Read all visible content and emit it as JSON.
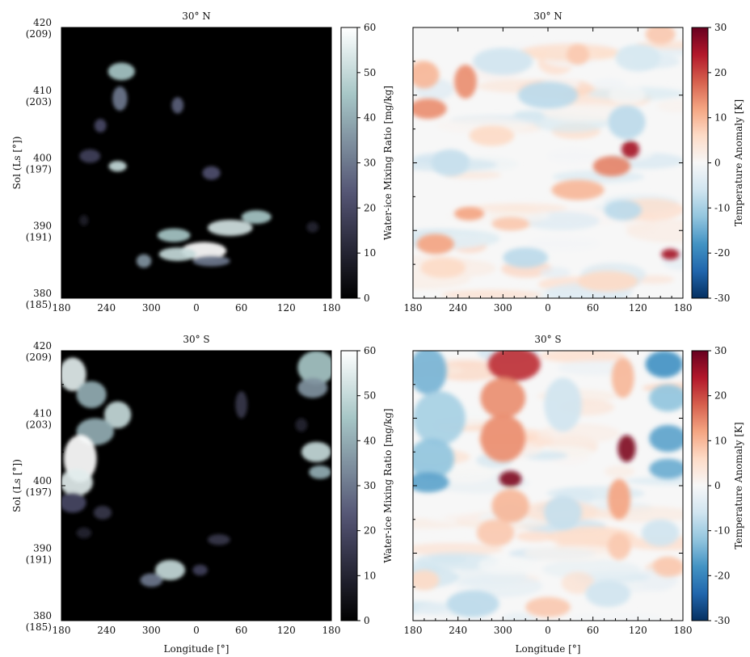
{
  "chart_data": [
    {
      "type": "heatmap",
      "title": "30° N",
      "variable": "water_ice_mixing_ratio",
      "xlabel": "",
      "ylabel": "Sol (Ls [°])",
      "x_ticks": [
        "180",
        "240",
        "300",
        "0",
        "60",
        "120",
        "180"
      ],
      "y_ticks": [
        {
          "sol": "380",
          "ls": "(185)"
        },
        {
          "sol": "390",
          "ls": "(191)"
        },
        {
          "sol": "400",
          "ls": "(197)"
        },
        {
          "sol": "410",
          "ls": "(203)"
        },
        {
          "sol": "420",
          "ls": "(209)"
        }
      ],
      "xlim": [
        180,
        540
      ],
      "ylim": [
        380,
        420
      ],
      "colorbar": {
        "label": "Water-ice Mixing Ratio [mg/kg]",
        "ticks": [
          "0",
          "10",
          "20",
          "30",
          "40",
          "50",
          "60"
        ],
        "range": [
          0,
          60
        ],
        "colormap": "bone"
      },
      "features": [
        {
          "lon": 260,
          "sol": 413.5,
          "value": 45,
          "w": 18,
          "h": 1.3
        },
        {
          "lon": 258,
          "sol": 409.5,
          "value": 30,
          "w": 10,
          "h": 1.8
        },
        {
          "lon": 335,
          "sol": 408.5,
          "value": 25,
          "w": 8,
          "h": 1.2
        },
        {
          "lon": 232,
          "sol": 405.5,
          "value": 20,
          "w": 8,
          "h": 1.0
        },
        {
          "lon": 218,
          "sol": 401.0,
          "value": 18,
          "w": 14,
          "h": 1.0
        },
        {
          "lon": 255,
          "sol": 399.5,
          "value": 50,
          "w": 12,
          "h": 0.8
        },
        {
          "lon": 380,
          "sol": 398.5,
          "value": 22,
          "w": 12,
          "h": 1.0
        },
        {
          "lon": 330,
          "sol": 389.3,
          "value": 45,
          "w": 22,
          "h": 1.0
        },
        {
          "lon": 405,
          "sol": 390.4,
          "value": 52,
          "w": 30,
          "h": 1.2
        },
        {
          "lon": 440,
          "sol": 392.0,
          "value": 45,
          "w": 20,
          "h": 1.0
        },
        {
          "lon": 370,
          "sol": 387.0,
          "value": 60,
          "w": 30,
          "h": 1.3
        },
        {
          "lon": 335,
          "sol": 386.5,
          "value": 50,
          "w": 25,
          "h": 1.0
        },
        {
          "lon": 290,
          "sol": 385.5,
          "value": 35,
          "w": 10,
          "h": 1.0
        },
        {
          "lon": 380,
          "sol": 385.5,
          "value": 30,
          "w": 25,
          "h": 0.8
        },
        {
          "lon": 515,
          "sol": 390.5,
          "value": 10,
          "w": 8,
          "h": 0.8
        },
        {
          "lon": 210,
          "sol": 391.5,
          "value": 8,
          "w": 6,
          "h": 0.8
        }
      ]
    },
    {
      "type": "heatmap",
      "title": "30° N",
      "variable": "temperature_anomaly",
      "xlabel": "",
      "ylabel": "",
      "x_ticks": [
        "180",
        "240",
        "300",
        "0",
        "60",
        "120",
        "180"
      ],
      "xlim": [
        180,
        540
      ],
      "ylim": [
        380,
        420
      ],
      "colorbar": {
        "label": "Temperature Anomaly [K]",
        "ticks": [
          "-30",
          "-20",
          "-10",
          "0",
          "10",
          "20",
          "30"
        ],
        "range": [
          -30,
          30
        ],
        "colormap": "RdBu_r"
      },
      "features": [
        {
          "lon": 195,
          "sol": 413.0,
          "value": 10,
          "w": 20,
          "h": 2.0
        },
        {
          "lon": 250,
          "sol": 412.0,
          "value": 14,
          "w": 15,
          "h": 2.5
        },
        {
          "lon": 200,
          "sol": 408.0,
          "value": 14,
          "w": 25,
          "h": 1.5
        },
        {
          "lon": 285,
          "sol": 404.0,
          "value": 6,
          "w": 30,
          "h": 1.5
        },
        {
          "lon": 300,
          "sol": 415.0,
          "value": -6,
          "w": 40,
          "h": 2.0
        },
        {
          "lon": 400,
          "sol": 416.0,
          "value": 8,
          "w": 15,
          "h": 1.5
        },
        {
          "lon": 360,
          "sol": 410.0,
          "value": -8,
          "w": 40,
          "h": 2.0
        },
        {
          "lon": 480,
          "sol": 415.5,
          "value": -5,
          "w": 30,
          "h": 2.0
        },
        {
          "lon": 465,
          "sol": 406.0,
          "value": -8,
          "w": 25,
          "h": 2.5
        },
        {
          "lon": 470,
          "sol": 402.0,
          "value": 25,
          "w": 12,
          "h": 1.3
        },
        {
          "lon": 445,
          "sol": 399.5,
          "value": 15,
          "w": 25,
          "h": 1.5
        },
        {
          "lon": 230,
          "sol": 400.0,
          "value": -7,
          "w": 25,
          "h": 2.0
        },
        {
          "lon": 400,
          "sol": 396.0,
          "value": 10,
          "w": 35,
          "h": 1.5
        },
        {
          "lon": 255,
          "sol": 392.5,
          "value": 12,
          "w": 20,
          "h": 1.0
        },
        {
          "lon": 310,
          "sol": 391.0,
          "value": 8,
          "w": 25,
          "h": 1.0
        },
        {
          "lon": 210,
          "sol": 388.0,
          "value": 12,
          "w": 25,
          "h": 1.5
        },
        {
          "lon": 460,
          "sol": 393.0,
          "value": -8,
          "w": 25,
          "h": 1.5
        },
        {
          "lon": 330,
          "sol": 386.0,
          "value": -8,
          "w": 30,
          "h": 1.5
        },
        {
          "lon": 220,
          "sol": 384.5,
          "value": 6,
          "w": 30,
          "h": 1.5
        },
        {
          "lon": 523,
          "sol": 386.5,
          "value": 25,
          "w": 12,
          "h": 0.8
        },
        {
          "lon": 440,
          "sol": 382.5,
          "value": 6,
          "w": 40,
          "h": 1.5
        },
        {
          "lon": 510,
          "sol": 419.0,
          "value": 8,
          "w": 20,
          "h": 1.5
        }
      ]
    },
    {
      "type": "heatmap",
      "title": "30° S",
      "variable": "water_ice_mixing_ratio",
      "xlabel": "Longitude [°]",
      "ylabel": "Sol (Ls [°])",
      "x_ticks": [
        "180",
        "240",
        "300",
        "0",
        "60",
        "120",
        "180"
      ],
      "y_ticks": [
        {
          "sol": "380",
          "ls": "(185)"
        },
        {
          "sol": "390",
          "ls": "(191)"
        },
        {
          "sol": "400",
          "ls": "(197)"
        },
        {
          "sol": "410",
          "ls": "(203)"
        },
        {
          "sol": "420",
          "ls": "(209)"
        }
      ],
      "xlim": [
        180,
        540
      ],
      "ylim": [
        380,
        420
      ],
      "colorbar": {
        "label": "Water-ice Mixing Ratio [mg/kg]",
        "ticks": [
          "0",
          "10",
          "20",
          "30",
          "40",
          "50",
          "60"
        ],
        "range": [
          0,
          60
        ],
        "colormap": "bone"
      },
      "features": [
        {
          "lon": 195,
          "sol": 416.5,
          "value": 55,
          "w": 18,
          "h": 2.5
        },
        {
          "lon": 220,
          "sol": 413.5,
          "value": 40,
          "w": 20,
          "h": 2.0
        },
        {
          "lon": 255,
          "sol": 410.5,
          "value": 50,
          "w": 18,
          "h": 2.0
        },
        {
          "lon": 225,
          "sol": 408.0,
          "value": 40,
          "w": 25,
          "h": 2.0
        },
        {
          "lon": 205,
          "sol": 404.0,
          "value": 60,
          "w": 22,
          "h": 3.5
        },
        {
          "lon": 200,
          "sol": 400.5,
          "value": 55,
          "w": 22,
          "h": 2.0
        },
        {
          "lon": 195,
          "sol": 397.5,
          "value": 20,
          "w": 18,
          "h": 1.5
        },
        {
          "lon": 235,
          "sol": 396.0,
          "value": 15,
          "w": 12,
          "h": 1.0
        },
        {
          "lon": 210,
          "sol": 393.0,
          "value": 10,
          "w": 10,
          "h": 0.8
        },
        {
          "lon": 420,
          "sol": 412.0,
          "value": 15,
          "w": 8,
          "h": 2.0
        },
        {
          "lon": 390,
          "sol": 392.0,
          "value": 15,
          "w": 15,
          "h": 0.8
        },
        {
          "lon": 325,
          "sol": 387.5,
          "value": 50,
          "w": 20,
          "h": 1.5
        },
        {
          "lon": 300,
          "sol": 386.0,
          "value": 30,
          "w": 15,
          "h": 1.0
        },
        {
          "lon": 365,
          "sol": 387.5,
          "value": 18,
          "w": 10,
          "h": 0.8
        },
        {
          "lon": 520,
          "sol": 417.5,
          "value": 45,
          "w": 25,
          "h": 2.5
        },
        {
          "lon": 515,
          "sol": 414.5,
          "value": 35,
          "w": 20,
          "h": 1.5
        },
        {
          "lon": 520,
          "sol": 405.0,
          "value": 50,
          "w": 20,
          "h": 1.5
        },
        {
          "lon": 525,
          "sol": 402.0,
          "value": 40,
          "w": 15,
          "h": 1.0
        },
        {
          "lon": 500,
          "sol": 409.0,
          "value": 10,
          "w": 8,
          "h": 1.0
        }
      ]
    },
    {
      "type": "heatmap",
      "title": "30° S",
      "variable": "temperature_anomaly",
      "xlabel": "Longitude [°]",
      "ylabel": "",
      "x_ticks": [
        "180",
        "240",
        "300",
        "0",
        "60",
        "120",
        "180"
      ],
      "xlim": [
        180,
        540
      ],
      "ylim": [
        380,
        420
      ],
      "colorbar": {
        "label": "Temperature Anomaly [K]",
        "ticks": [
          "-30",
          "-20",
          "-10",
          "0",
          "10",
          "20",
          "30"
        ],
        "range": [
          -30,
          30
        ],
        "colormap": "RdBu_r"
      },
      "features": [
        {
          "lon": 200,
          "sol": 417.0,
          "value": -14,
          "w": 25,
          "h": 3.5
        },
        {
          "lon": 215,
          "sol": 410.0,
          "value": -10,
          "w": 35,
          "h": 4.0
        },
        {
          "lon": 205,
          "sol": 404.0,
          "value": -12,
          "w": 30,
          "h": 3.0
        },
        {
          "lon": 200,
          "sol": 400.5,
          "value": -16,
          "w": 28,
          "h": 1.5
        },
        {
          "lon": 315,
          "sol": 418.0,
          "value": 22,
          "w": 35,
          "h": 2.5
        },
        {
          "lon": 300,
          "sol": 413.0,
          "value": 14,
          "w": 30,
          "h": 3.0
        },
        {
          "lon": 300,
          "sol": 407.0,
          "value": 14,
          "w": 30,
          "h": 3.5
        },
        {
          "lon": 310,
          "sol": 401.0,
          "value": 28,
          "w": 15,
          "h": 1.2
        },
        {
          "lon": 310,
          "sol": 397.0,
          "value": 10,
          "w": 25,
          "h": 2.5
        },
        {
          "lon": 290,
          "sol": 393.0,
          "value": 8,
          "w": 25,
          "h": 2.0
        },
        {
          "lon": 380,
          "sol": 412.0,
          "value": -6,
          "w": 25,
          "h": 4.0
        },
        {
          "lon": 460,
          "sol": 416.0,
          "value": 10,
          "w": 15,
          "h": 3.0
        },
        {
          "lon": 465,
          "sol": 405.5,
          "value": 28,
          "w": 12,
          "h": 2.0
        },
        {
          "lon": 455,
          "sol": 398.0,
          "value": 12,
          "w": 15,
          "h": 3.0
        },
        {
          "lon": 455,
          "sol": 391.0,
          "value": 8,
          "w": 15,
          "h": 2.0
        },
        {
          "lon": 515,
          "sol": 418.0,
          "value": -18,
          "w": 25,
          "h": 2.0
        },
        {
          "lon": 520,
          "sol": 413.0,
          "value": -12,
          "w": 25,
          "h": 2.0
        },
        {
          "lon": 520,
          "sol": 407.0,
          "value": -16,
          "w": 25,
          "h": 2.0
        },
        {
          "lon": 520,
          "sol": 402.5,
          "value": -15,
          "w": 25,
          "h": 1.5
        },
        {
          "lon": 380,
          "sol": 396.0,
          "value": -7,
          "w": 25,
          "h": 2.5
        },
        {
          "lon": 510,
          "sol": 393.0,
          "value": -6,
          "w": 25,
          "h": 2.0
        },
        {
          "lon": 195,
          "sol": 386.0,
          "value": 6,
          "w": 20,
          "h": 1.5
        },
        {
          "lon": 260,
          "sol": 382.5,
          "value": -8,
          "w": 35,
          "h": 2.0
        },
        {
          "lon": 360,
          "sol": 382.0,
          "value": 8,
          "w": 30,
          "h": 1.5
        },
        {
          "lon": 440,
          "sol": 384.0,
          "value": -6,
          "w": 30,
          "h": 2.0
        },
        {
          "lon": 520,
          "sol": 388.0,
          "value": 8,
          "w": 20,
          "h": 1.5
        }
      ]
    }
  ]
}
